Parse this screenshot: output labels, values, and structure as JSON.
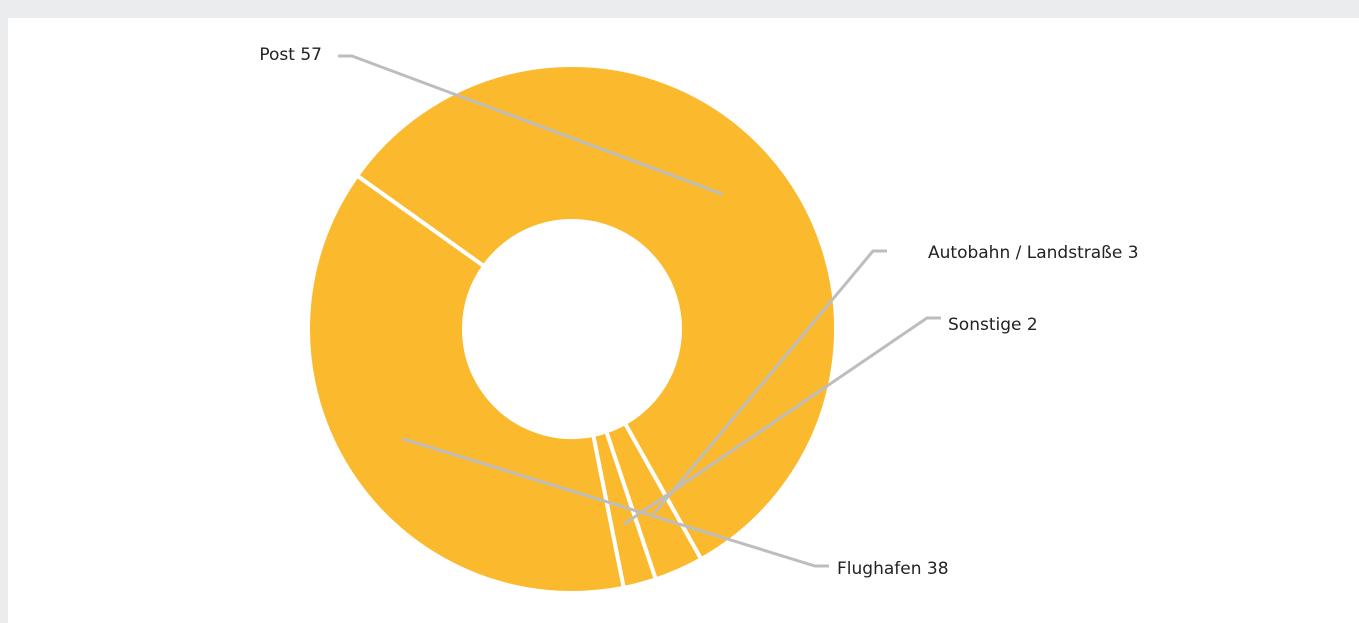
{
  "chart_data": {
    "type": "pie",
    "title": "",
    "slices": [
      {
        "label": "Post",
        "value": 57
      },
      {
        "label": "Autobahn / Landstraße",
        "value": 3
      },
      {
        "label": "Sonstige",
        "value": 2
      },
      {
        "label": "Flughafen",
        "value": 38
      }
    ],
    "colors": {
      "slice": "#fbb92d",
      "separator": "#ffffff",
      "leader": "#bdbdbd",
      "background": "#ebecee",
      "card": "#ffffff"
    },
    "legend": "none",
    "donut": true
  }
}
